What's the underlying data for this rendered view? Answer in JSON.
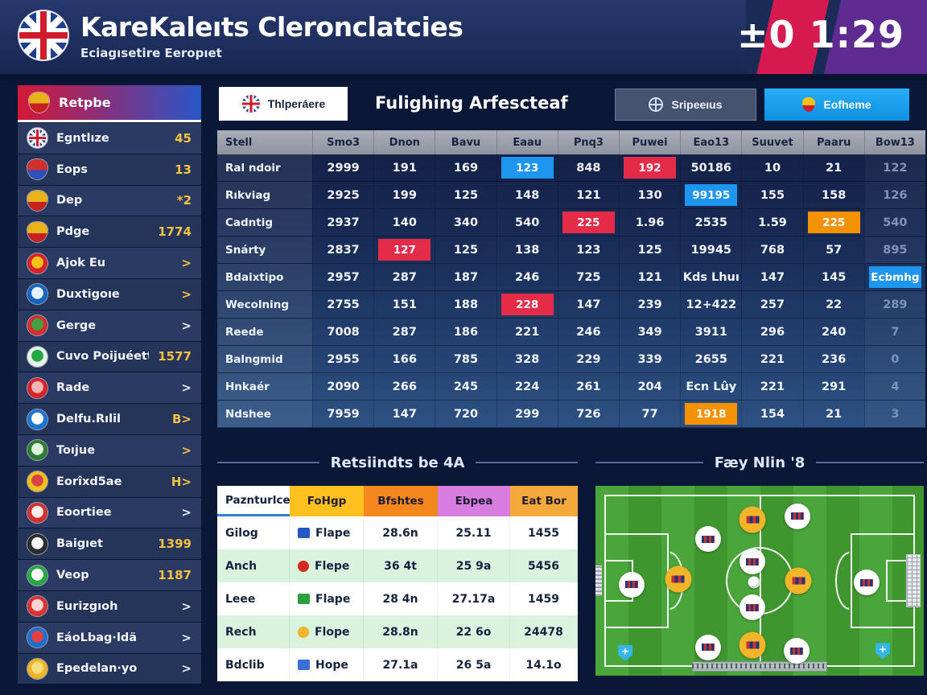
{
  "colors": {
    "accent_blue": "#1e96ef",
    "accent_red": "#e42b47",
    "accent_orange": "#f39204",
    "gold": "#f5c242",
    "header_red": "#d6194e",
    "header_purple": "#5e2b91",
    "pitch_green": "#4aa63a",
    "tab_blue": "#18a0ec",
    "results_green_row": "#d9f3de"
  },
  "header": {
    "title": "KareKaleıts Cleronclatcies",
    "subtitle": "Eciagısetire Eeropıet",
    "clock": "±0 1:29"
  },
  "sidebar": {
    "header_label": "Retpbe",
    "items": [
      {
        "label": "Egntlıze",
        "value": "45",
        "icon": {
          "name": "uk-flag-icon",
          "cls": "icon-ukflag"
        }
      },
      {
        "label": "Eops",
        "value": "13",
        "icon": {
          "name": "shield-icon",
          "cls": "icon-shield",
          "a": "#d03030",
          "b": "#2b50b8"
        }
      },
      {
        "label": "Dep",
        "value": "*2",
        "icon": {
          "name": "shield-icon",
          "cls": "icon-shield",
          "a": "#e8b31a",
          "b": "#c62020"
        }
      },
      {
        "label": "Pdge",
        "value": "1774",
        "icon": {
          "name": "shield-icon",
          "cls": "icon-shield",
          "a": "#e8b31a",
          "b": "#c62020"
        }
      },
      {
        "label": "Ajok Eu",
        "value": ">",
        "icon": {
          "name": "club-badge-icon",
          "a": "#d8232a",
          "b": "#f3c21a"
        }
      },
      {
        "label": "Duxtigoıe",
        "value": ">",
        "icon": {
          "name": "club-badge-icon",
          "a": "#1565c0",
          "b": "#e3f2fd"
        }
      },
      {
        "label": "Gerge",
        "value": ">",
        "vw": true,
        "icon": {
          "name": "club-badge-icon",
          "a": "#d32f2f",
          "b": "#43a047"
        }
      },
      {
        "label": "Cuvo Poijuéett",
        "value": "1577",
        "icon": {
          "name": "club-badge-icon",
          "a": "#e9f3ec",
          "b": "#28a745"
        }
      },
      {
        "label": "Rade",
        "value": ">",
        "vw": true,
        "icon": {
          "name": "club-badge-icon",
          "a": "#d8232a",
          "b": "#f0b6b6"
        }
      },
      {
        "label": "Delfu.Rılil",
        "value": "B>",
        "icon": {
          "name": "club-badge-icon",
          "a": "#1976d2",
          "b": "#ffffff"
        }
      },
      {
        "label": "Toıjue",
        "value": ">",
        "icon": {
          "name": "club-badge-icon",
          "a": "#2e7d32",
          "b": "#dff2e0"
        }
      },
      {
        "label": "Eorîxd5ae",
        "value": "H>",
        "icon": {
          "name": "club-badge-icon",
          "a": "#f3c21a",
          "b": "#d84343"
        }
      },
      {
        "label": "Eoortiee",
        "value": ">",
        "vw": true,
        "icon": {
          "name": "club-badge-icon",
          "a": "#d32f2f",
          "b": "#ffebeb"
        }
      },
      {
        "label": "Baigıet",
        "value": "1399",
        "icon": {
          "name": "club-badge-icon",
          "a": "#2b2b2b",
          "b": "#f5f5f5"
        }
      },
      {
        "label": "Veop",
        "value": "1187",
        "icon": {
          "name": "club-badge-icon",
          "a": "#28a745",
          "b": "#ffffff"
        }
      },
      {
        "label": "Eurizgıoh",
        "value": ">",
        "vw": true,
        "icon": {
          "name": "club-badge-icon",
          "a": "#e03131",
          "b": "#ffd4d4"
        }
      },
      {
        "label": "EáoLbag·ldä",
        "value": ">",
        "vw": true,
        "icon": {
          "name": "club-badge-icon",
          "a": "#1b6fd0",
          "b": "#e04040"
        }
      },
      {
        "label": "Epedelan·yo",
        "value": ">",
        "vw": true,
        "icon": {
          "name": "club-badge-icon",
          "a": "#f0b429",
          "b": "#f6de7a"
        }
      }
    ]
  },
  "main": {
    "tab_left": "Thlperáere",
    "title": "Fulighing Arfescteaf",
    "tab_globe": "Sripeeıus",
    "tab_shield": "Eofheme",
    "table": {
      "columns": [
        "Stell",
        "Smo3",
        "Dnon",
        "Bavu",
        "Eaau",
        "Pnq3",
        "Puwei",
        "Eao13",
        "Suuvet",
        "Paaru",
        "Bow13"
      ],
      "rows": [
        {
          "name": "Ral ndoir",
          "cells": [
            {
              "t": "2999"
            },
            {
              "t": "191"
            },
            {
              "t": "169"
            },
            {
              "t": "123",
              "h": "blue"
            },
            {
              "t": "848"
            },
            {
              "t": "192",
              "h": "red"
            },
            {
              "t": "50186"
            },
            {
              "t": "10"
            },
            {
              "t": "21"
            },
            {
              "t": "122",
              "g": true
            }
          ]
        },
        {
          "name": "Rıkviag",
          "cells": [
            {
              "t": "2925"
            },
            {
              "t": "199"
            },
            {
              "t": "125"
            },
            {
              "t": "148"
            },
            {
              "t": "121"
            },
            {
              "t": "130"
            },
            {
              "t": "99195",
              "h": "blue"
            },
            {
              "t": "155"
            },
            {
              "t": "158"
            },
            {
              "t": "126",
              "g": true
            }
          ]
        },
        {
          "name": "Cadntig",
          "cells": [
            {
              "t": "2937"
            },
            {
              "t": "140"
            },
            {
              "t": "340"
            },
            {
              "t": "540"
            },
            {
              "t": "225",
              "h": "red"
            },
            {
              "t": "1.96"
            },
            {
              "t": "2535"
            },
            {
              "t": "1.59"
            },
            {
              "t": "225",
              "h": "orange"
            },
            {
              "t": "540",
              "g": true
            }
          ]
        },
        {
          "name": "Snárty",
          "cells": [
            {
              "t": "2837"
            },
            {
              "t": "127",
              "h": "red"
            },
            {
              "t": "125"
            },
            {
              "t": "138"
            },
            {
              "t": "123"
            },
            {
              "t": "125"
            },
            {
              "t": "19945"
            },
            {
              "t": "768"
            },
            {
              "t": "57"
            },
            {
              "t": "895",
              "g": true
            }
          ]
        },
        {
          "name": "Bdaixtipo",
          "cells": [
            {
              "t": "2957"
            },
            {
              "t": "287"
            },
            {
              "t": "187"
            },
            {
              "t": "246"
            },
            {
              "t": "725"
            },
            {
              "t": "121"
            },
            {
              "t": "Kds Lhuı"
            },
            {
              "t": "147"
            },
            {
              "t": "145"
            },
            {
              "t": "Ecbmhg",
              "h": "blue"
            }
          ]
        },
        {
          "name": "Wecolning",
          "cells": [
            {
              "t": "2755"
            },
            {
              "t": "151"
            },
            {
              "t": "188"
            },
            {
              "t": "228",
              "h": "red"
            },
            {
              "t": "147"
            },
            {
              "t": "239"
            },
            {
              "t": "12+422"
            },
            {
              "t": "257"
            },
            {
              "t": "22"
            },
            {
              "t": "289",
              "g": true
            }
          ]
        },
        {
          "name": "Reede",
          "cells": [
            {
              "t": "7008"
            },
            {
              "t": "287"
            },
            {
              "t": "186"
            },
            {
              "t": "221"
            },
            {
              "t": "246"
            },
            {
              "t": "349"
            },
            {
              "t": "3911"
            },
            {
              "t": "296"
            },
            {
              "t": "240"
            },
            {
              "t": "7",
              "g": true
            }
          ]
        },
        {
          "name": "Balngmid",
          "cells": [
            {
              "t": "2955"
            },
            {
              "t": "166"
            },
            {
              "t": "785"
            },
            {
              "t": "328"
            },
            {
              "t": "229"
            },
            {
              "t": "339"
            },
            {
              "t": "2655"
            },
            {
              "t": "221"
            },
            {
              "t": "236"
            },
            {
              "t": "0",
              "g": true
            }
          ]
        },
        {
          "name": "Hnkaér",
          "cells": [
            {
              "t": "2090"
            },
            {
              "t": "266"
            },
            {
              "t": "245"
            },
            {
              "t": "224"
            },
            {
              "t": "261"
            },
            {
              "t": "204"
            },
            {
              "t": "Ecn Lûy"
            },
            {
              "t": "221"
            },
            {
              "t": "291"
            },
            {
              "t": "4",
              "g": true
            }
          ]
        },
        {
          "name": "Ndshee",
          "cells": [
            {
              "t": "7959"
            },
            {
              "t": "147"
            },
            {
              "t": "720"
            },
            {
              "t": "299"
            },
            {
              "t": "726"
            },
            {
              "t": "77"
            },
            {
              "t": "1918",
              "h": "orange"
            },
            {
              "t": "154"
            },
            {
              "t": "21"
            },
            {
              "t": "3",
              "g": true
            }
          ]
        }
      ]
    }
  },
  "results": {
    "title": "Retsiindts be 4A",
    "columns": [
      {
        "label": "Paznturlce",
        "bg": "#ffffff"
      },
      {
        "label": "FoHgp",
        "bg": "#ffc020"
      },
      {
        "label": "Bfshtes",
        "bg": "#f5871f"
      },
      {
        "label": "Ebpea",
        "bg": "#d77de0"
      },
      {
        "label": "Eat Bor",
        "bg": "#f6a93b"
      }
    ],
    "rows": [
      {
        "name": "Gilog",
        "flag_color": "#2558c4",
        "flag_shape": "square",
        "flag_label": "Flape",
        "values": [
          "28.6n",
          "25.11",
          "1455"
        ]
      },
      {
        "name": "Anch",
        "flag_color": "#d42b20",
        "flag_shape": "circle",
        "flag_label": "Flepe",
        "values": [
          "36 4t",
          "25 9a",
          "5456"
        ]
      },
      {
        "name": "Leee",
        "flag_color": "#2f9e3f",
        "flag_shape": "square",
        "flag_label": "Flape",
        "values": [
          "28 4n",
          "27.17a",
          "1459"
        ]
      },
      {
        "name": "Rech",
        "flag_color": "#f0b52c",
        "flag_shape": "circle",
        "flag_label": "Flope",
        "values": [
          "28.8n",
          "22 6o",
          "24478"
        ]
      },
      {
        "name": "Bdclib",
        "flag_color": "#3a6fd8",
        "flag_shape": "square",
        "flag_label": "Hope",
        "values": [
          "27.1a",
          "26 5a",
          "14.1o"
        ]
      }
    ]
  },
  "pitch": {
    "title": "Fæy Nlin '8",
    "markers": [
      {
        "x": 47.8,
        "y": 18,
        "t": "yellow"
      },
      {
        "x": 61.5,
        "y": 16,
        "t": "white"
      },
      {
        "x": 34.3,
        "y": 28,
        "t": "white"
      },
      {
        "x": 47.8,
        "y": 40,
        "t": "white"
      },
      {
        "x": 48.4,
        "y": 51,
        "t": "ball"
      },
      {
        "x": 25.2,
        "y": 49,
        "t": "yellow"
      },
      {
        "x": 11.0,
        "y": 52,
        "t": "white"
      },
      {
        "x": 61.8,
        "y": 50,
        "t": "yellow"
      },
      {
        "x": 82.6,
        "y": 51,
        "t": "white"
      },
      {
        "x": 47.8,
        "y": 64,
        "t": "white"
      },
      {
        "x": 34.3,
        "y": 85,
        "t": "white"
      },
      {
        "x": 47.8,
        "y": 84,
        "t": "yellow"
      },
      {
        "x": 61.3,
        "y": 87,
        "t": "white"
      },
      {
        "x": 9.1,
        "y": 88,
        "t": "shield"
      },
      {
        "x": 87.5,
        "y": 87,
        "t": "shield"
      }
    ]
  }
}
